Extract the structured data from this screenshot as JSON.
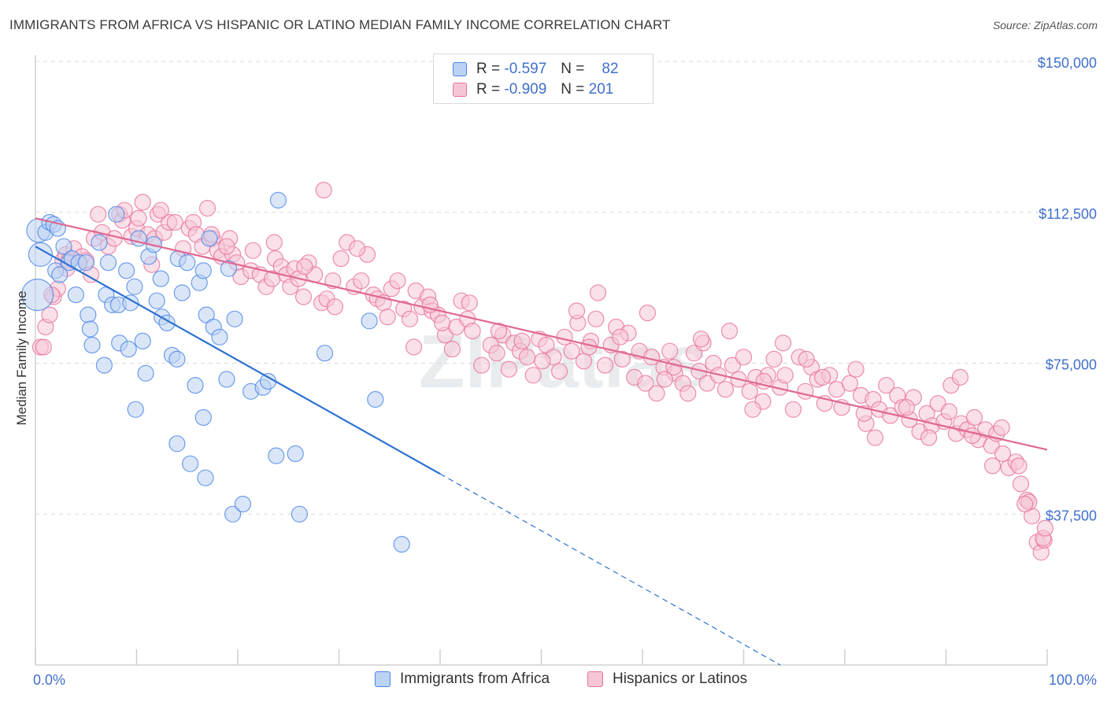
{
  "title": "IMMIGRANTS FROM AFRICA VS HISPANIC OR LATINO MEDIAN FAMILY INCOME CORRELATION CHART",
  "source": "Source: ZipAtlas.com",
  "watermark": "ZIPatlas",
  "colors": {
    "blue": "#4a86e8",
    "blue_fill": "#bcd2f3",
    "blue_line": "#2e72d2",
    "pink": "#e8729a",
    "pink_fill": "#f6c6d6",
    "pink_line": "#e06891",
    "axis_text": "#3f6fce",
    "grid": "#d9d9d9"
  },
  "legend": {
    "r_label": "R =",
    "n_label": "N =",
    "rows": [
      {
        "r": "-0.597",
        "n": "82"
      },
      {
        "r": "-0.909",
        "n": "201"
      }
    ]
  },
  "bottom_legend": [
    "Immigrants from Africa",
    "Hispanics or Latinos"
  ],
  "chart_data": {
    "type": "scatter",
    "xlabel": "",
    "ylabel": "Median Family Income",
    "xlim": [
      0,
      100
    ],
    "ylim": [
      0,
      157000
    ],
    "x_tick_labels": [
      "0.0%",
      "100.0%"
    ],
    "y_ticks": [
      37500,
      75000,
      112500,
      150000
    ],
    "y_tick_labels": [
      "$37,500",
      "$75,000",
      "$112,500",
      "$150,000"
    ],
    "grid": true,
    "legend_position": "top-center",
    "series": [
      {
        "name": "Immigrants from Africa",
        "stats": {
          "R": -0.597,
          "N": 82
        },
        "trend": {
          "x0": 0,
          "y0": 104000,
          "x1": 40,
          "y1": 47500,
          "dash_to_x": 100
        },
        "points": [
          [
            0.3,
            108000
          ],
          [
            0.5,
            102000
          ],
          [
            0.2,
            92000
          ],
          [
            1,
            107500
          ],
          [
            1.4,
            110000
          ],
          [
            1.8,
            109500
          ],
          [
            2.2,
            108500
          ],
          [
            2.8,
            104000
          ],
          [
            3.3,
            100000
          ],
          [
            2,
            98000
          ],
          [
            2.4,
            97000
          ],
          [
            3.6,
            101000
          ],
          [
            4.3,
            100000
          ],
          [
            4,
            92000
          ],
          [
            5.2,
            87000
          ],
          [
            5.4,
            83500
          ],
          [
            5.6,
            79500
          ],
          [
            6.8,
            74500
          ],
          [
            7,
            92000
          ],
          [
            7.2,
            100000
          ],
          [
            6.3,
            105000
          ],
          [
            7.6,
            89500
          ],
          [
            8.2,
            89500
          ],
          [
            8.3,
            80000
          ],
          [
            9,
            98000
          ],
          [
            9.4,
            90000
          ],
          [
            9.8,
            94000
          ],
          [
            9.2,
            78500
          ],
          [
            10.2,
            106000
          ],
          [
            10.6,
            80500
          ],
          [
            10.9,
            72500
          ],
          [
            8,
            112000
          ],
          [
            11.2,
            101500
          ],
          [
            12,
            90500
          ],
          [
            12.5,
            86500
          ],
          [
            12.4,
            96000
          ],
          [
            11.7,
            104500
          ],
          [
            13,
            85000
          ],
          [
            13.5,
            77000
          ],
          [
            14,
            76000
          ],
          [
            14.1,
            101000
          ],
          [
            14.5,
            92500
          ],
          [
            15,
            100000
          ],
          [
            15.8,
            69500
          ],
          [
            16.2,
            95000
          ],
          [
            16.6,
            98000
          ],
          [
            16.9,
            87000
          ],
          [
            17.2,
            106000
          ],
          [
            17.6,
            84000
          ],
          [
            18.2,
            81500
          ],
          [
            18.9,
            71000
          ],
          [
            19.1,
            98500
          ],
          [
            19.7,
            86000
          ],
          [
            21.3,
            68000
          ],
          [
            22.5,
            69000
          ],
          [
            23,
            70500
          ],
          [
            24,
            115500
          ],
          [
            28.6,
            77500
          ],
          [
            33,
            85500
          ],
          [
            33.6,
            66000
          ],
          [
            9.9,
            63500
          ],
          [
            14,
            55000
          ],
          [
            15.3,
            50000
          ],
          [
            16.6,
            61500
          ],
          [
            16.8,
            46500
          ],
          [
            19.5,
            37500
          ],
          [
            20.5,
            40000
          ],
          [
            23.8,
            52000
          ],
          [
            25.7,
            52500
          ],
          [
            26.1,
            37500
          ],
          [
            36.2,
            30000
          ],
          [
            5,
            100000
          ]
        ]
      },
      {
        "name": "Hispanics or Latinos",
        "stats": {
          "R": -0.909,
          "N": 201
        },
        "trend": {
          "x0": 0,
          "y0": 111000,
          "x1": 100,
          "y1": 53500
        },
        "points": [
          [
            0.5,
            79000
          ],
          [
            1,
            84000
          ],
          [
            1.4,
            87000
          ],
          [
            1.8,
            91500
          ],
          [
            2.2,
            93500
          ],
          [
            2.7,
            100500
          ],
          [
            3,
            102000
          ],
          [
            3.3,
            100500
          ],
          [
            3.8,
            103500
          ],
          [
            4.6,
            101500
          ],
          [
            5,
            100500
          ],
          [
            5.8,
            106000
          ],
          [
            6.6,
            107500
          ],
          [
            7.2,
            104000
          ],
          [
            7.8,
            106000
          ],
          [
            8.3,
            112000
          ],
          [
            8.6,
            110500
          ],
          [
            9.5,
            106500
          ],
          [
            10,
            108500
          ],
          [
            10.2,
            111000
          ],
          [
            10.6,
            115000
          ],
          [
            11.1,
            107000
          ],
          [
            11.8,
            106000
          ],
          [
            12.1,
            112000
          ],
          [
            12.7,
            107500
          ],
          [
            13.2,
            110000
          ],
          [
            13.8,
            110000
          ],
          [
            14.6,
            103500
          ],
          [
            15.2,
            108500
          ],
          [
            15.6,
            110000
          ],
          [
            15.9,
            107000
          ],
          [
            16.5,
            104000
          ],
          [
            17,
            113500
          ],
          [
            17.5,
            106000
          ],
          [
            18,
            103000
          ],
          [
            18.4,
            101500
          ],
          [
            19.2,
            106000
          ],
          [
            19.5,
            102000
          ],
          [
            19.9,
            100000
          ],
          [
            20.3,
            96500
          ],
          [
            21.3,
            98000
          ],
          [
            21.5,
            103000
          ],
          [
            22.2,
            97000
          ],
          [
            22.8,
            94000
          ],
          [
            23.4,
            96000
          ],
          [
            23.7,
            101000
          ],
          [
            24.3,
            99000
          ],
          [
            24.8,
            97000
          ],
          [
            25.2,
            94000
          ],
          [
            25.6,
            98500
          ],
          [
            26,
            96000
          ],
          [
            26.5,
            91500
          ],
          [
            27,
            100000
          ],
          [
            27.6,
            97000
          ],
          [
            28.3,
            90000
          ],
          [
            28.8,
            91000
          ],
          [
            29.4,
            95500
          ],
          [
            30.2,
            101000
          ],
          [
            30.8,
            105000
          ],
          [
            31.5,
            94000
          ],
          [
            32.2,
            95500
          ],
          [
            32.8,
            102000
          ],
          [
            33.4,
            92000
          ],
          [
            33.8,
            91000
          ],
          [
            34.4,
            90000
          ],
          [
            35.2,
            93500
          ],
          [
            35.8,
            95500
          ],
          [
            36.4,
            88500
          ],
          [
            37,
            86000
          ],
          [
            37.6,
            93000
          ],
          [
            38.2,
            89000
          ],
          [
            38.8,
            91500
          ],
          [
            39.2,
            88000
          ],
          [
            39.8,
            87000
          ],
          [
            40.5,
            82000
          ],
          [
            41.2,
            78500
          ],
          [
            41.6,
            84000
          ],
          [
            42.1,
            90500
          ],
          [
            42.7,
            86000
          ],
          [
            43.2,
            83000
          ],
          [
            44.1,
            74500
          ],
          [
            45,
            79500
          ],
          [
            45.6,
            77500
          ],
          [
            46.2,
            82000
          ],
          [
            46.8,
            73500
          ],
          [
            47.3,
            80000
          ],
          [
            47.9,
            78000
          ],
          [
            48.6,
            76500
          ],
          [
            49.2,
            72000
          ],
          [
            49.8,
            81000
          ],
          [
            50.5,
            79500
          ],
          [
            51.2,
            76500
          ],
          [
            51.8,
            73000
          ],
          [
            52.3,
            81500
          ],
          [
            53,
            78000
          ],
          [
            53.6,
            85000
          ],
          [
            54.2,
            75500
          ],
          [
            54.9,
            80500
          ],
          [
            55.4,
            86000
          ],
          [
            56.3,
            74500
          ],
          [
            56.9,
            79500
          ],
          [
            57.4,
            84000
          ],
          [
            58,
            76000
          ],
          [
            58.6,
            82500
          ],
          [
            59.2,
            71500
          ],
          [
            59.7,
            78000
          ],
          [
            60.3,
            70000
          ],
          [
            60.9,
            76500
          ],
          [
            61.4,
            67500
          ],
          [
            62.1,
            74000
          ],
          [
            62.7,
            78000
          ],
          [
            63.2,
            72500
          ],
          [
            64,
            70000
          ],
          [
            64.5,
            67500
          ],
          [
            65.1,
            77500
          ],
          [
            65.6,
            73000
          ],
          [
            66.4,
            70000
          ],
          [
            67,
            75000
          ],
          [
            67.5,
            72000
          ],
          [
            68.2,
            68500
          ],
          [
            68.9,
            74500
          ],
          [
            69.5,
            71000
          ],
          [
            70,
            76500
          ],
          [
            70.6,
            68000
          ],
          [
            71.2,
            71500
          ],
          [
            71.9,
            65500
          ],
          [
            72.4,
            72000
          ],
          [
            73,
            76000
          ],
          [
            73.6,
            69000
          ],
          [
            74.1,
            72000
          ],
          [
            74.9,
            63500
          ],
          [
            75.5,
            76500
          ],
          [
            76.1,
            68000
          ],
          [
            76.7,
            74000
          ],
          [
            77.3,
            71000
          ],
          [
            78,
            65000
          ],
          [
            78.5,
            72000
          ],
          [
            79.2,
            68500
          ],
          [
            79.7,
            64000
          ],
          [
            80.5,
            70000
          ],
          [
            81.1,
            73500
          ],
          [
            81.6,
            67000
          ],
          [
            82.1,
            60000
          ],
          [
            82.8,
            66000
          ],
          [
            83.4,
            63500
          ],
          [
            84.1,
            69500
          ],
          [
            84.5,
            62000
          ],
          [
            85.2,
            67000
          ],
          [
            85.7,
            64000
          ],
          [
            86.4,
            61000
          ],
          [
            86.8,
            66500
          ],
          [
            87.4,
            58000
          ],
          [
            88.1,
            62500
          ],
          [
            88.6,
            59500
          ],
          [
            89.2,
            65000
          ],
          [
            89.8,
            60500
          ],
          [
            90.3,
            63000
          ],
          [
            91,
            57500
          ],
          [
            91.5,
            60000
          ],
          [
            92.1,
            58500
          ],
          [
            92.8,
            61500
          ],
          [
            93.2,
            56000
          ],
          [
            93.9,
            58500
          ],
          [
            94.5,
            54500
          ],
          [
            95,
            57500
          ],
          [
            95.6,
            52500
          ],
          [
            96.2,
            49000
          ],
          [
            96.9,
            50500
          ],
          [
            97.4,
            45000
          ],
          [
            98,
            41000
          ],
          [
            98.5,
            37000
          ],
          [
            99,
            30500
          ],
          [
            99.4,
            28000
          ],
          [
            99.7,
            31000
          ],
          [
            28.5,
            118000
          ],
          [
            39,
            89500
          ],
          [
            45.8,
            83000
          ],
          [
            53.5,
            88000
          ],
          [
            60.5,
            87500
          ],
          [
            66,
            80000
          ],
          [
            72,
            70500
          ],
          [
            77.8,
            71500
          ],
          [
            83,
            56500
          ],
          [
            90.5,
            69500
          ],
          [
            91.4,
            71500
          ],
          [
            94.6,
            49500
          ],
          [
            97.2,
            49500
          ],
          [
            98.2,
            40500
          ],
          [
            99.6,
            31500
          ],
          [
            0.8,
            79000
          ],
          [
            1.6,
            92000
          ],
          [
            8.8,
            113000
          ],
          [
            5.5,
            97000
          ],
          [
            12.4,
            113000
          ],
          [
            23.6,
            105000
          ],
          [
            31.8,
            103500
          ],
          [
            40.2,
            85000
          ],
          [
            55.6,
            92500
          ],
          [
            63.1,
            74000
          ],
          [
            70.9,
            63500
          ],
          [
            81.9,
            62500
          ],
          [
            88.3,
            56500
          ],
          [
            95.5,
            59000
          ],
          [
            6.2,
            112000
          ],
          [
            18.9,
            104000
          ],
          [
            26.6,
            99000
          ],
          [
            34.8,
            86500
          ],
          [
            42.9,
            90000
          ],
          [
            50.1,
            75500
          ],
          [
            57.8,
            81500
          ],
          [
            65.8,
            81000
          ],
          [
            73.9,
            80000
          ],
          [
            86.1,
            64000
          ],
          [
            92.6,
            57000
          ],
          [
            97.8,
            40000
          ],
          [
            99.8,
            34000
          ],
          [
            3.1,
            98500
          ],
          [
            11.5,
            99500
          ],
          [
            17.4,
            107000
          ],
          [
            29.6,
            89000
          ],
          [
            37.4,
            79000
          ],
          [
            48.1,
            80500
          ],
          [
            54.7,
            79000
          ],
          [
            62.2,
            71000
          ],
          [
            68.6,
            83000
          ],
          [
            76.2,
            76000
          ]
        ]
      }
    ]
  }
}
